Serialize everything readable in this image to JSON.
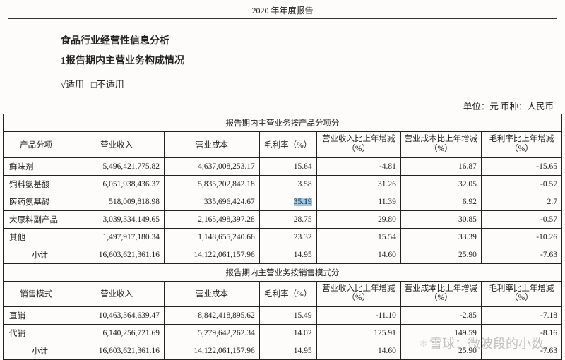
{
  "page_header": "2020 年年度报告",
  "titles": {
    "t1": "食品行业经营性信息分析",
    "t2": "1报告期内主营业务构成情况"
  },
  "applicable": {
    "checked": "√适用",
    "unchecked": "□不适用"
  },
  "unit_line": "单位：元    币种：人民币",
  "section1_header": "报告期内主营业务按产品分项分",
  "section2_header": "报告期内主营业务按销售模式分",
  "cols1": {
    "c0": "产品分项",
    "c1": "营业收入",
    "c2": "营业成本",
    "c3": "毛利率（%）",
    "c4": "营业收入比上年增减（%）",
    "c5": "营业成本比上年增减（%）",
    "c6": "毛利率比上年增减（%）"
  },
  "cols2": {
    "c0": "销售模式",
    "c1": "营业收入",
    "c2": "营业成本",
    "c3": "毛利率（%）",
    "c4": "营业收入比上年增减（%）",
    "c5": "营业成本比上年增减（%）",
    "c6": "毛利率比上年增减（%）"
  },
  "rows1": [
    {
      "name": "鲜味剂",
      "rev": "5,496,421,775.82",
      "cost": "4,637,008,253.17",
      "gm": "15.64",
      "drev": "-4.81",
      "dcost": "16.87",
      "dgm": "-15.65"
    },
    {
      "name": "饲料氨基酸",
      "rev": "6,051,938,436.37",
      "cost": "5,835,202,842.18",
      "gm": "3.58",
      "drev": "31.26",
      "dcost": "32.05",
      "dgm": "-0.57"
    },
    {
      "name": "医药氨基酸",
      "rev": "518,009,818.98",
      "cost": "335,696,424.67",
      "gm": "35.19",
      "drev": "11.39",
      "dcost": "6.92",
      "dgm": "2.7",
      "hl": true
    },
    {
      "name": "大原料副产品",
      "rev": "3,039,334,149.65",
      "cost": "2,165,498,397.28",
      "gm": "28.75",
      "drev": "29.80",
      "dcost": "30.85",
      "dgm": "-0.57"
    },
    {
      "name": "其他",
      "rev": "1,497,917,180.34",
      "cost": "1,148,655,240.66",
      "gm": "23.32",
      "drev": "15.54",
      "dcost": "33.39",
      "dgm": "-10.26"
    }
  ],
  "subtotal1": {
    "name": "小计",
    "rev": "16,603,621,361.16",
    "cost": "14,122,061,157.96",
    "gm": "14.95",
    "drev": "14.60",
    "dcost": "25.90",
    "dgm": "-7.63"
  },
  "rows2": [
    {
      "name": "直销",
      "rev": "10,463,364,639.47",
      "cost": "8,842,418,895.62",
      "gm": "15.49",
      "drev": "-11.10",
      "dcost": "-2.85",
      "dgm": "-7.18"
    },
    {
      "name": "代销",
      "rev": "6,140,256,721.69",
      "cost": "5,279,642,262.34",
      "gm": "14.02",
      "drev": "125.91",
      "dcost": "149.59",
      "dgm": "-8.16"
    }
  ],
  "subtotal2": {
    "name": "小计",
    "rev": "16,603,621,361.16",
    "cost": "14,122,061,157.96",
    "gm": "14.95",
    "drev": "14.60",
    "dcost": "25.90",
    "dgm": "-7.63"
  },
  "watermark": "雪球：微波段的小数",
  "colwidths": [
    "90",
    "130",
    "130",
    "78",
    "115",
    "110",
    "110"
  ]
}
